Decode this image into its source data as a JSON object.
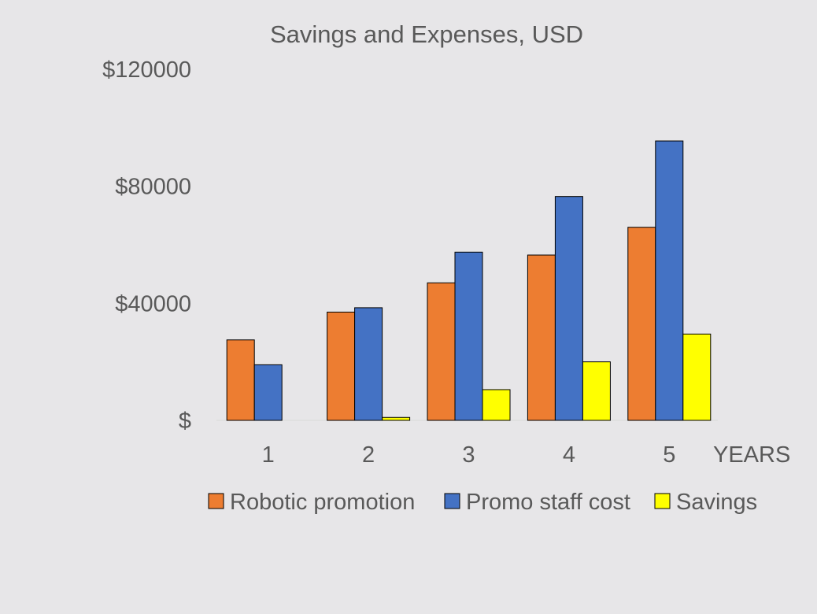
{
  "chart_data": {
    "type": "bar",
    "title": "Savings and Expenses, USD",
    "xlabel": "YEARS",
    "ylabel": "",
    "categories": [
      "1",
      "2",
      "3",
      "4",
      "5"
    ],
    "ylim": [
      0,
      120000
    ],
    "yticks": [
      0,
      40000,
      80000,
      120000
    ],
    "ytick_labels": [
      "$",
      "$40000",
      "$80000",
      "$120000"
    ],
    "grid": false,
    "legend_position": "bottom",
    "series": [
      {
        "name": "Robotic promotion",
        "color": "#ed7d31",
        "values": [
          27500,
          37000,
          47000,
          56500,
          66000
        ]
      },
      {
        "name": "Promo staff cost",
        "color": "#4472c4",
        "values": [
          19000,
          38500,
          57500,
          76500,
          95500
        ]
      },
      {
        "name": "Savings",
        "color": "#ffff00",
        "values": [
          0,
          1000,
          10500,
          20000,
          29500
        ]
      }
    ]
  }
}
